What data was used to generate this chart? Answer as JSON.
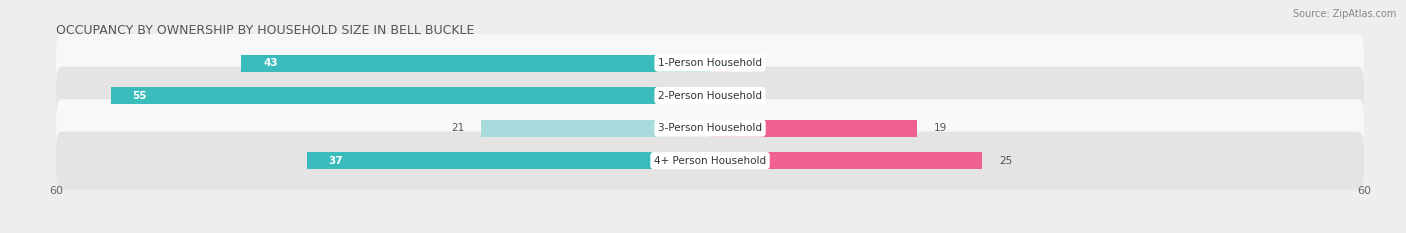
{
  "title": "OCCUPANCY BY OWNERSHIP BY HOUSEHOLD SIZE IN BELL BUCKLE",
  "source": "Source: ZipAtlas.com",
  "categories": [
    "1-Person Household",
    "2-Person Household",
    "3-Person Household",
    "4+ Person Household"
  ],
  "owner_values": [
    43,
    55,
    21,
    37
  ],
  "renter_values": [
    2,
    0,
    19,
    25
  ],
  "owner_color_dark": "#3BBCBC",
  "owner_color_light": "#A8DCDC",
  "renter_color_dark": "#F06090",
  "renter_color_light": "#F8B8CC",
  "axis_max": 60,
  "bg_color": "#eeeeee",
  "row_bg_light": "#f8f8f8",
  "row_bg_dark": "#e4e4e4",
  "title_fontsize": 9,
  "label_fontsize": 7.5,
  "bar_label_fontsize": 7.5,
  "tick_fontsize": 8,
  "legend_fontsize": 8,
  "owner_threshold": 30,
  "renter_threshold": 10
}
